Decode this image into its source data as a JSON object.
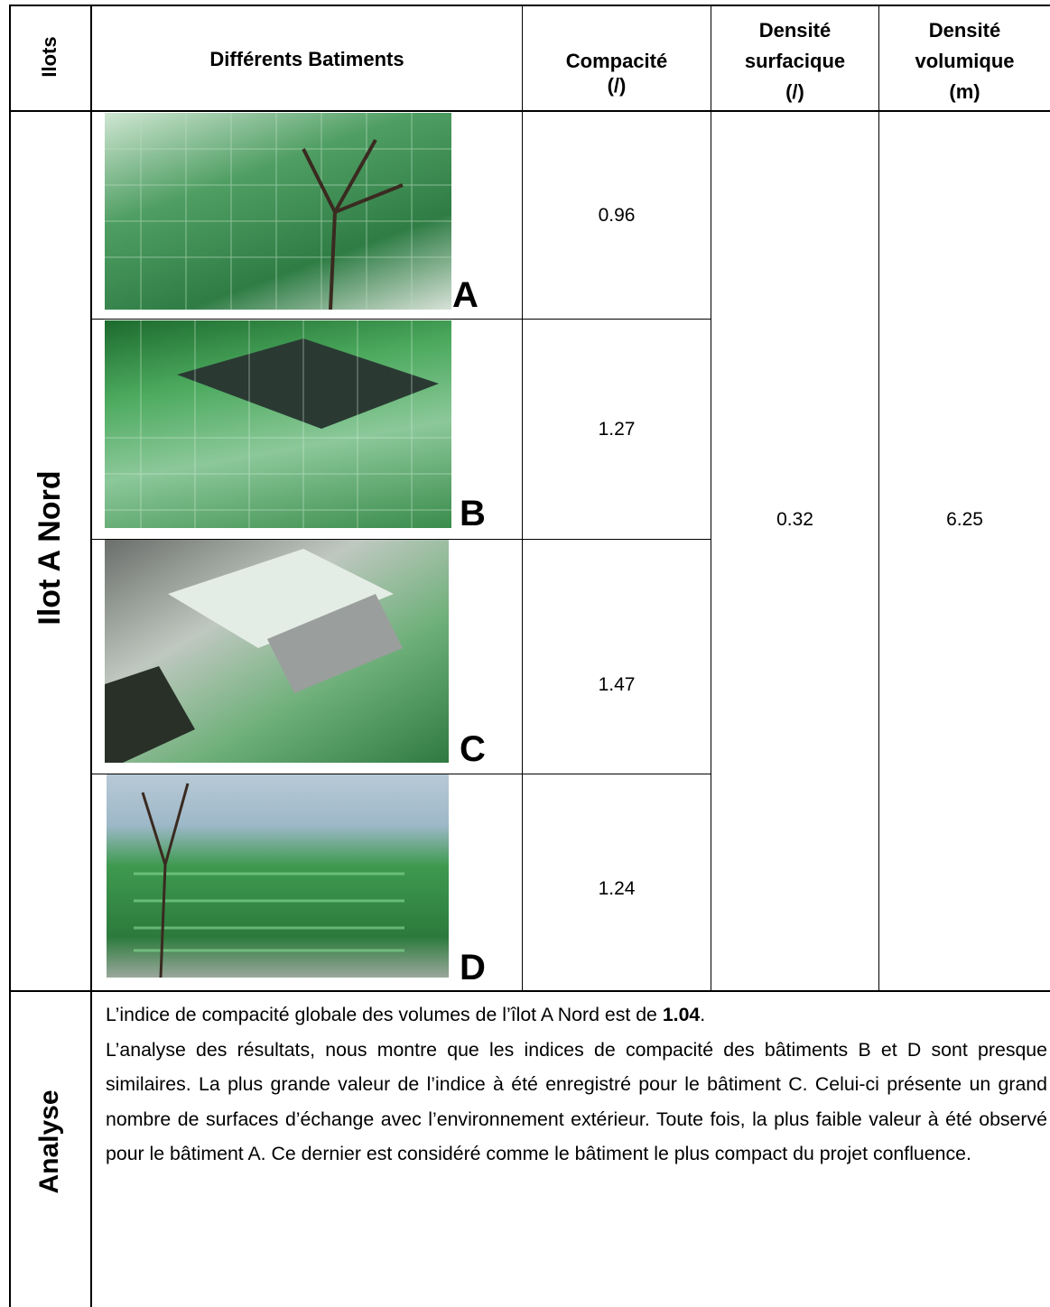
{
  "table": {
    "header": {
      "ilots": "Ilots",
      "batiments": "Différents Batiments",
      "compacite": [
        "Compacité",
        "(/)"
      ],
      "densite_surfacique": [
        "Densité",
        "surfacique",
        "(/)"
      ],
      "densite_volumique": [
        "Densité",
        "volumique",
        "(m)"
      ]
    },
    "group": "Ilot A Nord",
    "rows": [
      {
        "label": "A",
        "compacite": "0.96"
      },
      {
        "label": "B",
        "compacite": "1.27"
      },
      {
        "label": "C",
        "compacite": "1.47"
      },
      {
        "label": "D",
        "compacite": "1.24"
      }
    ],
    "densite_surfacique": "0.32",
    "densite_volumique": "6.25"
  },
  "analysis": {
    "label": "Analyse",
    "intro": "L’indice de compacité globale des volumes de l’îlot A Nord est de ",
    "intro_value": "1.04",
    "intro_end": ".",
    "text": "L’analyse des résultats, nous montre que les indices de compacité des bâtiments B et D sont presque similaires. La plus grande valeur de l’indice à été enregistré pour le bâtiment C. Celui-ci présente un grand nombre de surfaces d’échange avec l’environnement extérieur. Toute fois, la plus faible valeur à été observé pour le bâtiment A. Ce dernier est considéré comme le bâtiment le plus compact du projet confluence."
  }
}
